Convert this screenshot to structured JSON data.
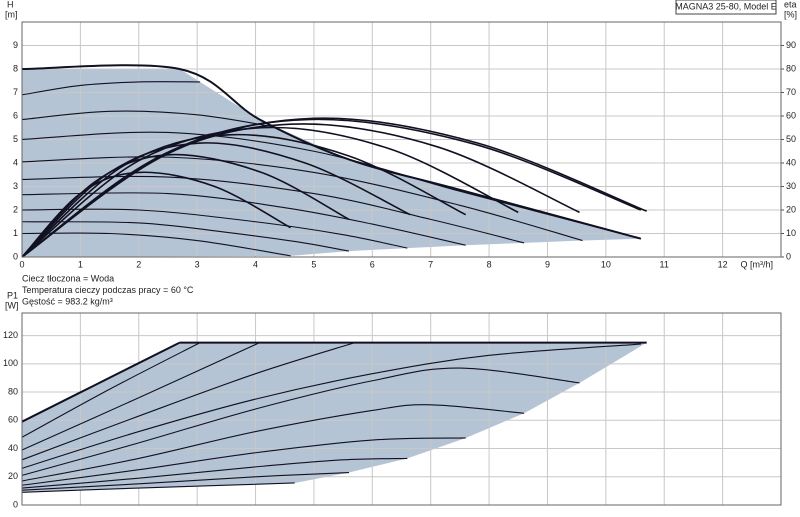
{
  "chart_data": [
    {
      "type": "line",
      "title": "MAGNA3 25-80, Model E",
      "ylabel": "H",
      "yunit": "[m]",
      "y2label": "eta",
      "y2unit": "[%]",
      "xlabel": "Q [m³/h]",
      "annotations": [
        "Ciecz tłoczona = Woda",
        "Temperatura cieczy podczas pracy = 60 °C",
        "Gęstość = 983.2 kg/m³"
      ],
      "xlim": [
        0,
        13
      ],
      "ylim": [
        0,
        10
      ],
      "y2lim": [
        0,
        100
      ],
      "xticks": [
        0,
        1,
        2,
        3,
        4,
        5,
        6,
        7,
        8,
        9,
        10,
        11,
        12
      ],
      "yticks": [
        0,
        1,
        2,
        3,
        4,
        5,
        6,
        7,
        8,
        9
      ],
      "y2ticks": [
        0,
        10,
        20,
        30,
        40,
        50,
        60,
        70,
        80,
        90
      ],
      "grid": true,
      "line_color": "#111122",
      "region": {
        "color": "#b4c4d4",
        "x": [
          0,
          2.7,
          4.07,
          5.6,
          7.5,
          10.6,
          9.6,
          8.6,
          7.6,
          6.6,
          5.6,
          4.6,
          0
        ],
        "values": [
          8,
          8,
          5.85,
          4.15,
          2.86,
          0.78,
          0.7,
          0.6,
          0.5,
          0.38,
          0.25,
          0.05,
          0
        ]
      },
      "series": [
        {
          "width": 2,
          "x": [
            0,
            2.7,
            4.07,
            5.6,
            7.5,
            10.6
          ],
          "values": [
            8,
            8,
            5.85,
            4.15,
            2.86,
            0.78
          ]
        },
        {
          "x": [
            0,
            1,
            2,
            3.05
          ],
          "values": [
            6.9,
            7.3,
            7.45,
            7.45
          ]
        },
        {
          "x": [
            0,
            1.5,
            3,
            4.4
          ],
          "values": [
            5.85,
            6.2,
            6.05,
            5.5
          ]
        },
        {
          "x": [
            0,
            2.5,
            5,
            7.5,
            10.6
          ],
          "values": [
            5.0,
            5.3,
            4.5,
            2.8,
            0.78
          ]
        },
        {
          "x": [
            0,
            2.5,
            5,
            7.5,
            9.6
          ],
          "values": [
            4.05,
            4.25,
            3.6,
            2.2,
            0.7
          ]
        },
        {
          "x": [
            0,
            2.5,
            5,
            7,
            8.6
          ],
          "values": [
            3.3,
            3.4,
            2.7,
            1.6,
            0.6
          ]
        },
        {
          "x": [
            0,
            2.5,
            4.5,
            6,
            7.6
          ],
          "values": [
            2.65,
            2.7,
            2.1,
            1.4,
            0.5
          ]
        },
        {
          "x": [
            0,
            2,
            4,
            5.5,
            6.6
          ],
          "values": [
            2.0,
            2.0,
            1.5,
            0.95,
            0.38
          ]
        },
        {
          "x": [
            0,
            2,
            3.5,
            4.7,
            5.6
          ],
          "values": [
            1.5,
            1.45,
            1.05,
            0.65,
            0.25
          ]
        },
        {
          "x": [
            0,
            1.5,
            3,
            4.6
          ],
          "values": [
            1.0,
            1.0,
            0.7,
            0.05
          ]
        },
        {
          "axis": "y2",
          "width": 1.6,
          "x": [
            0,
            1,
            2,
            3.3,
            4.6
          ],
          "values": [
            0,
            27,
            36,
            30,
            12.5
          ]
        },
        {
          "axis": "y2",
          "width": 1.6,
          "x": [
            0,
            1.25,
            2.5,
            4.1,
            5.6
          ],
          "values": [
            0,
            32,
            43.5,
            36,
            16
          ]
        },
        {
          "axis": "y2",
          "width": 1.6,
          "x": [
            0,
            1.5,
            3.05,
            4.85,
            6.65
          ],
          "values": [
            0,
            36,
            48.5,
            40,
            18
          ]
        },
        {
          "axis": "y2",
          "width": 1.6,
          "x": [
            0,
            1.75,
            3.55,
            5.6,
            7.6
          ],
          "values": [
            0,
            39,
            52,
            43,
            18
          ]
        },
        {
          "axis": "y2",
          "width": 1.6,
          "x": [
            0,
            2,
            4.1,
            6.3,
            8.5
          ],
          "values": [
            0,
            41,
            55,
            46,
            19
          ]
        },
        {
          "axis": "y2",
          "width": 1.6,
          "x": [
            0,
            2.3,
            4.6,
            7.1,
            9.55
          ],
          "values": [
            0,
            42,
            56.5,
            47,
            19
          ]
        },
        {
          "axis": "y2",
          "width": 1.6,
          "x": [
            0,
            2.45,
            4.9,
            7.75,
            10.6
          ],
          "values": [
            0,
            44,
            58.5,
            48,
            20
          ]
        },
        {
          "axis": "y2",
          "width": 1.6,
          "x": [
            0,
            2.5,
            5.0,
            7.8,
            10.7
          ],
          "values": [
            0,
            44,
            59,
            48.5,
            19.5
          ]
        }
      ]
    },
    {
      "type": "line",
      "ylabel": "P1",
      "yunit": "[W]",
      "xlim": [
        0,
        13
      ],
      "ylim": [
        0,
        136
      ],
      "xticks": [
        0,
        1,
        2,
        3,
        4,
        5,
        6,
        7,
        8,
        9,
        10,
        11,
        12
      ],
      "xtick_labels": false,
      "yticks": [
        0,
        20,
        40,
        60,
        80,
        100,
        120
      ],
      "grid": true,
      "line_color": "#111122",
      "region": {
        "color": "#b4c4d4",
        "x": [
          0,
          2.7,
          10.7,
          9.55,
          8.6,
          7.6,
          6.6,
          5.6,
          4.67,
          3.5,
          2,
          0
        ],
        "values": [
          59,
          115,
          115,
          86.5,
          65,
          47.5,
          33,
          23,
          15.6,
          14,
          12,
          9
        ]
      },
      "series": [
        {
          "width": 2,
          "x": [
            0,
            1.3,
            2.7
          ],
          "values": [
            59,
            86,
            115
          ]
        },
        {
          "x": [
            0,
            1.5,
            3.05
          ],
          "values": [
            48,
            82,
            115
          ]
        },
        {
          "x": [
            0,
            2,
            4.07
          ],
          "values": [
            39,
            76,
            115
          ]
        },
        {
          "x": [
            0,
            2,
            4,
            5.7
          ],
          "values": [
            32,
            63,
            93,
            115
          ]
        },
        {
          "width": 2,
          "x": [
            2.7,
            10.7
          ],
          "values": [
            115,
            115
          ]
        },
        {
          "x": [
            0,
            2,
            4,
            6,
            8,
            10.6
          ],
          "values": [
            26,
            52,
            75,
            93,
            106,
            114
          ]
        },
        {
          "x": [
            0,
            2,
            4,
            6,
            7.5,
            9.55
          ],
          "values": [
            21,
            44,
            68,
            88,
            97,
            86.5
          ]
        },
        {
          "x": [
            0,
            2,
            4,
            6,
            7,
            8.6
          ],
          "values": [
            17,
            33,
            52,
            67,
            71,
            65
          ]
        },
        {
          "x": [
            0,
            2,
            4,
            6,
            7.6
          ],
          "values": [
            14,
            25,
            37,
            46,
            47.5
          ]
        },
        {
          "x": [
            0,
            2,
            4,
            5.5,
            6.6
          ],
          "values": [
            12,
            19,
            27,
            32,
            33
          ]
        },
        {
          "x": [
            0,
            2,
            4,
            5.6
          ],
          "values": [
            10.5,
            15,
            20,
            23
          ]
        },
        {
          "x": [
            0,
            2,
            3.5,
            4.67
          ],
          "values": [
            9,
            12,
            14,
            15.6
          ]
        }
      ]
    }
  ]
}
